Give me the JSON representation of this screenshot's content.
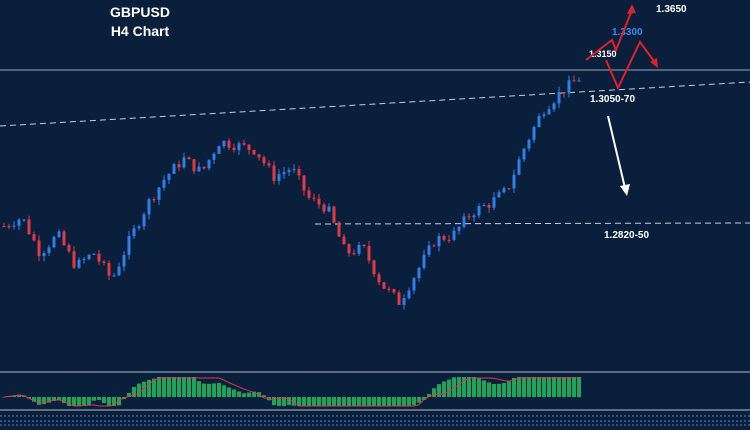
{
  "header": {
    "symbol": "GBPUSD",
    "timeframe": "H4 Chart"
  },
  "colors": {
    "background": "#0a1f3c",
    "bull_candle": "#2f7fe6",
    "bear_candle": "#e03a45",
    "dashed_level": "#c8d0dc",
    "resistance_line": "#9aa6b8",
    "up_arrow": "#e0202c",
    "down_arrow": "#ffffff",
    "histogram": "#1fa55a",
    "panel_border": "#b0b8c4"
  },
  "levels": [
    {
      "label": "1.3650",
      "color": "#ffffff"
    },
    {
      "label": "1.3300",
      "color": "#3a8df0"
    },
    {
      "label": "1.3150",
      "color": "#ffffff"
    },
    {
      "label": "1.3050-70",
      "color": "#ffffff"
    },
    {
      "label": "1.2820-50",
      "color": "#ffffff"
    }
  ],
  "chart_data": {
    "type": "candlestick",
    "title": "GBPUSD H4 Chart",
    "annotations": [
      "1.3650",
      "1.3300",
      "1.3150",
      "1.3050-70",
      "1.2820-50"
    ],
    "close_path": [
      1.285,
      1.287,
      1.279,
      1.283,
      1.276,
      1.279,
      1.273,
      1.282,
      1.29,
      1.296,
      1.3,
      1.297,
      1.304,
      1.303,
      1.302,
      1.296,
      1.298,
      1.291,
      1.289,
      1.279,
      1.28,
      1.272,
      1.268,
      1.275,
      1.282,
      1.283,
      1.288,
      1.29,
      1.293,
      1.303,
      1.311,
      1.315,
      1.318
    ],
    "indicator": "histogram oscillator"
  }
}
